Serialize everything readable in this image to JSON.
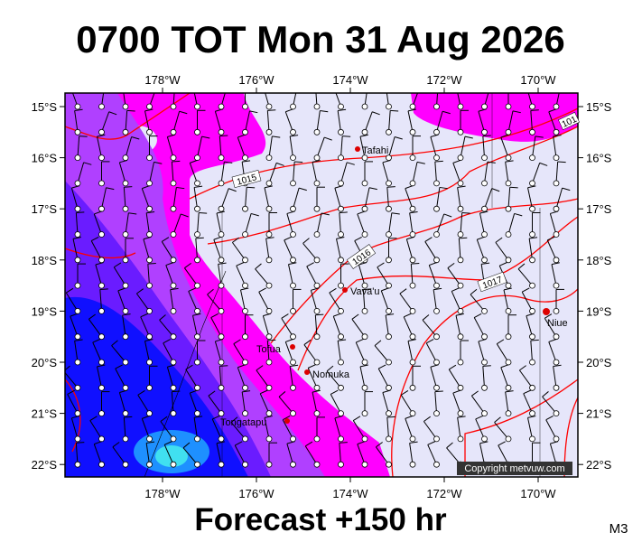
{
  "header": {
    "title": "0700 TOT Mon 31 Aug 2026"
  },
  "map": {
    "lon_labels": [
      "178°W",
      "176°W",
      "174°W",
      "172°W",
      "170°W"
    ],
    "lat_labels": [
      "15°S",
      "16°S",
      "17°S",
      "18°S",
      "19°S",
      "20°S",
      "21°S",
      "22°S"
    ],
    "isobar_labels": [
      "1015",
      "1016",
      "1017",
      "101"
    ],
    "places": [
      "Tafahi",
      "Vava'u",
      "Tofua",
      "Nomuka",
      "Tongatapu",
      "Niue"
    ],
    "copyright": "Copyright metvuw.com"
  },
  "footer": {
    "forecast": "Forecast +150 hr",
    "model": "M3"
  }
}
